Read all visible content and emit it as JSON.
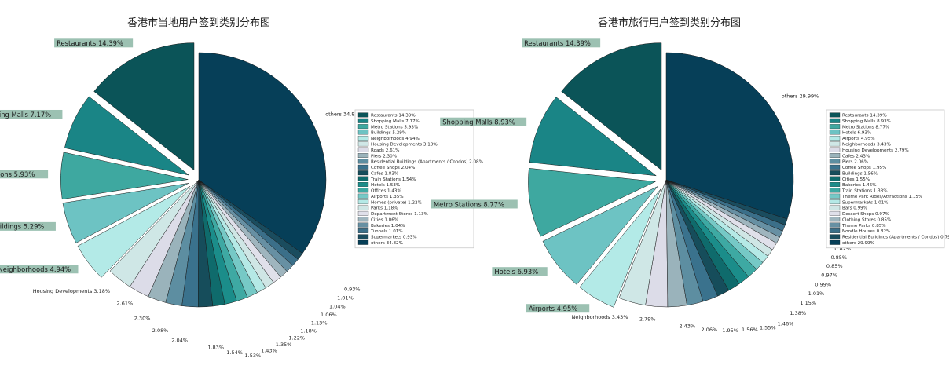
{
  "chart_data": [
    {
      "type": "pie",
      "title": "香港市当地用户签到类别分布图",
      "legend_position": "right",
      "slices": [
        {
          "label": "Restaurants",
          "value": 14.39,
          "pct": "14.39%",
          "color": "#0b5458",
          "explode": true,
          "box": true
        },
        {
          "label": "Shopping Malls",
          "value": 7.17,
          "pct": "7.17%",
          "color": "#1a8586",
          "explode": true,
          "box": true
        },
        {
          "label": "Metro Stations",
          "value": 5.93,
          "pct": "5.93%",
          "color": "#3ea8a0",
          "explode": true,
          "box": true
        },
        {
          "label": "Buildings",
          "value": 5.29,
          "pct": "5.29%",
          "color": "#6dc3c3",
          "explode": true,
          "box": true
        },
        {
          "label": "Neighborhoods",
          "value": 4.94,
          "pct": "4.94%",
          "color": "#b3eae7",
          "explode": true,
          "box": true
        },
        {
          "label": "Housing Developments",
          "value": 3.18,
          "pct": "3.18%",
          "color": "#cfe7e6",
          "explode": false,
          "box": false
        },
        {
          "label": "Roads",
          "value": 2.61,
          "pct": "2.61%",
          "color": "#dcdce8",
          "explode": false,
          "box": false
        },
        {
          "label": "Piers",
          "value": 2.3,
          "pct": "2.30%",
          "color": "#9ab3bb",
          "explode": false,
          "box": false
        },
        {
          "label": "Residential Buildings (Apartments / Condos)",
          "value": 2.08,
          "pct": "2.08%",
          "color": "#5d8ea1",
          "explode": false,
          "box": false
        },
        {
          "label": "Coffee Shops",
          "value": 2.04,
          "pct": "2.04%",
          "color": "#3a728d",
          "explode": false,
          "box": false
        },
        {
          "label": "Cafes",
          "value": 1.83,
          "pct": "1.83%",
          "color": "#164d5b",
          "explode": false,
          "box": false
        },
        {
          "label": "Train Stations",
          "value": 1.54,
          "pct": "1.54%",
          "color": "#0f6b6c",
          "explode": false,
          "box": false
        },
        {
          "label": "Hotels",
          "value": 1.53,
          "pct": "1.53%",
          "color": "#1b8d8a",
          "explode": false,
          "box": false
        },
        {
          "label": "Offices",
          "value": 1.43,
          "pct": "1.43%",
          "color": "#3ea9a3",
          "explode": false,
          "box": false
        },
        {
          "label": "Airports",
          "value": 1.35,
          "pct": "1.35%",
          "color": "#76c9c6",
          "explode": false,
          "box": false
        },
        {
          "label": "Homes (private)",
          "value": 1.22,
          "pct": "1.22%",
          "color": "#b5e9e6",
          "explode": false,
          "box": false
        },
        {
          "label": "Parks",
          "value": 1.18,
          "pct": "1.18%",
          "color": "#cfe6e5",
          "explode": false,
          "box": false
        },
        {
          "label": "Department Stores",
          "value": 1.13,
          "pct": "1.13%",
          "color": "#e0e0ea",
          "explode": false,
          "box": false
        },
        {
          "label": "Cities",
          "value": 1.06,
          "pct": "1.06%",
          "color": "#9fb5be",
          "explode": false,
          "box": false
        },
        {
          "label": "Bakeries",
          "value": 1.04,
          "pct": "1.04%",
          "color": "#6790a3",
          "explode": false,
          "box": false
        },
        {
          "label": "Tunnels",
          "value": 1.01,
          "pct": "1.01%",
          "color": "#3b6f89",
          "explode": false,
          "box": false
        },
        {
          "label": "Supermarkets",
          "value": 0.93,
          "pct": "0.93%",
          "color": "#1a4c5e",
          "explode": false,
          "box": false
        },
        {
          "label": "others",
          "value": 34.82,
          "pct": "34.82%",
          "color": "#063f58",
          "explode": false,
          "box": false
        }
      ]
    },
    {
      "type": "pie",
      "title": "香港市旅行用户签到类别分布图",
      "legend_position": "right",
      "slices": [
        {
          "label": "Restaurants",
          "value": 14.39,
          "pct": "14.39%",
          "color": "#0b5458",
          "explode": true,
          "box": true
        },
        {
          "label": "Shopping Malls",
          "value": 8.93,
          "pct": "8.93%",
          "color": "#1a8586",
          "explode": true,
          "box": true
        },
        {
          "label": "Metro Stations",
          "value": 8.77,
          "pct": "8.77%",
          "color": "#3ea8a0",
          "explode": true,
          "box": true
        },
        {
          "label": "Hotels",
          "value": 6.93,
          "pct": "6.93%",
          "color": "#6dc3c3",
          "explode": true,
          "box": true
        },
        {
          "label": "Airports",
          "value": 4.95,
          "pct": "4.95%",
          "color": "#b3eae7",
          "explode": true,
          "box": true
        },
        {
          "label": "Neighborhoods",
          "value": 3.43,
          "pct": "3.43%",
          "color": "#cfe7e6",
          "explode": false,
          "box": false
        },
        {
          "label": "Housing Developments",
          "value": 2.79,
          "pct": "2.79%",
          "color": "#dcdce8",
          "explode": false,
          "box": false
        },
        {
          "label": "Cafes",
          "value": 2.43,
          "pct": "2.43%",
          "color": "#9ab3bb",
          "explode": false,
          "box": false
        },
        {
          "label": "Piers",
          "value": 2.06,
          "pct": "2.06%",
          "color": "#5d8ea1",
          "explode": false,
          "box": false
        },
        {
          "label": "Coffee Shops",
          "value": 1.95,
          "pct": "1.95%",
          "color": "#3a728d",
          "explode": false,
          "box": false
        },
        {
          "label": "Buildings",
          "value": 1.56,
          "pct": "1.56%",
          "color": "#164d5b",
          "explode": false,
          "box": false
        },
        {
          "label": "Cities",
          "value": 1.55,
          "pct": "1.55%",
          "color": "#0f6b6c",
          "explode": false,
          "box": false
        },
        {
          "label": "Bakeries",
          "value": 1.46,
          "pct": "1.46%",
          "color": "#1b8d8a",
          "explode": false,
          "box": false
        },
        {
          "label": "Train Stations",
          "value": 1.38,
          "pct": "1.38%",
          "color": "#3ea9a3",
          "explode": false,
          "box": false
        },
        {
          "label": "Theme Park Rides/Attractions",
          "value": 1.15,
          "pct": "1.15%",
          "color": "#76c9c6",
          "explode": false,
          "box": false
        },
        {
          "label": "Supermarkets",
          "value": 1.01,
          "pct": "1.01%",
          "color": "#b5e9e6",
          "explode": false,
          "box": false
        },
        {
          "label": "Bars",
          "value": 0.99,
          "pct": "0.99%",
          "color": "#cfe6e5",
          "explode": false,
          "box": false
        },
        {
          "label": "Dessert Shops",
          "value": 0.97,
          "pct": "0.97%",
          "color": "#e0e0ea",
          "explode": false,
          "box": false
        },
        {
          "label": "Clothing Stores",
          "value": 0.85,
          "pct": "0.85%",
          "color": "#9fb5be",
          "explode": false,
          "box": false
        },
        {
          "label": "Theme Parks",
          "value": 0.85,
          "pct": "0.85%",
          "color": "#6790a3",
          "explode": false,
          "box": false
        },
        {
          "label": "Noodle Houses",
          "value": 0.82,
          "pct": "0.82%",
          "color": "#3b6f89",
          "explode": false,
          "box": false
        },
        {
          "label": "Residential Buildings (Apartments / Condos)",
          "value": 0.79,
          "pct": "0.79%",
          "color": "#1a4c5e",
          "explode": false,
          "box": false
        },
        {
          "label": "others",
          "value": 29.99,
          "pct": "29.99%",
          "color": "#063f58",
          "explode": false,
          "box": false
        }
      ]
    }
  ],
  "style": {
    "label_box_color": "#9cc1b2",
    "edge_color": "#1a1a1a",
    "background": "#ffffff"
  }
}
